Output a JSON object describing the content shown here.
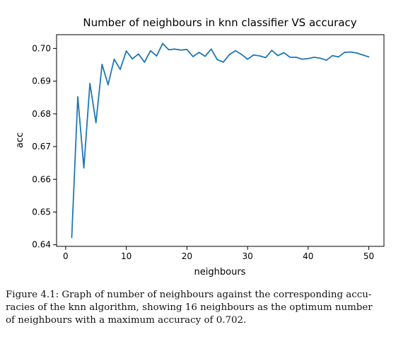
{
  "chart_data": {
    "type": "line",
    "title": "Number of neighbours in knn classifier VS accuracy",
    "xlabel": "neighbours",
    "ylabel": "acc",
    "xlim": [
      -1.5,
      52.5
    ],
    "ylim": [
      0.6395,
      0.7042
    ],
    "xticks": [
      0,
      10,
      20,
      30,
      40,
      50
    ],
    "yticks": [
      0.64,
      0.65,
      0.66,
      0.67,
      0.68,
      0.69,
      0.7
    ],
    "grid": false,
    "line_color": "#1f77b4",
    "x": [
      1,
      2,
      3,
      4,
      5,
      6,
      7,
      8,
      9,
      10,
      11,
      12,
      13,
      14,
      15,
      16,
      17,
      18,
      19,
      20,
      21,
      22,
      23,
      24,
      25,
      26,
      27,
      28,
      29,
      30,
      31,
      32,
      33,
      34,
      35,
      36,
      37,
      38,
      39,
      40,
      41,
      42,
      43,
      44,
      45,
      46,
      47,
      48,
      49,
      50
    ],
    "y": [
      0.6422,
      0.6852,
      0.6635,
      0.6893,
      0.6773,
      0.6951,
      0.6889,
      0.6967,
      0.6936,
      0.6992,
      0.6968,
      0.6983,
      0.6958,
      0.6993,
      0.6977,
      0.7015,
      0.6996,
      0.6998,
      0.6995,
      0.6997,
      0.6975,
      0.6988,
      0.6976,
      0.6998,
      0.6966,
      0.6958,
      0.6981,
      0.6993,
      0.6982,
      0.6967,
      0.698,
      0.6977,
      0.6972,
      0.6994,
      0.6978,
      0.6987,
      0.6973,
      0.6973,
      0.6967,
      0.6969,
      0.6973,
      0.697,
      0.6964,
      0.6978,
      0.6974,
      0.6988,
      0.6989,
      0.6986,
      0.698,
      0.6974
    ]
  },
  "caption": {
    "line1": "Figure 4.1: Graph of number of neighbours against the corresponding accu-",
    "line2": "racies of the knn algorithm, showing 16 neighbours as the optimum number",
    "line3": "of neighbours with a maximum accuracy of 0.702."
  }
}
